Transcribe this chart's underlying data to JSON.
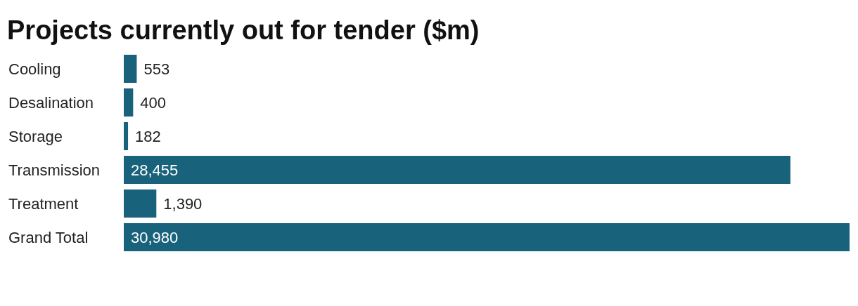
{
  "chart_data": {
    "type": "bar",
    "orientation": "horizontal",
    "title": "Projects currently out for tender ($m)",
    "categories": [
      "Cooling",
      "Desalination",
      "Storage",
      "Transmission",
      "Treatment",
      "Grand Total"
    ],
    "values": [
      553,
      400,
      182,
      28455,
      1390,
      30980
    ],
    "value_labels": [
      "553",
      "400",
      "182",
      "28,455",
      "1,390",
      "30,980"
    ],
    "color": "#18627b"
  }
}
